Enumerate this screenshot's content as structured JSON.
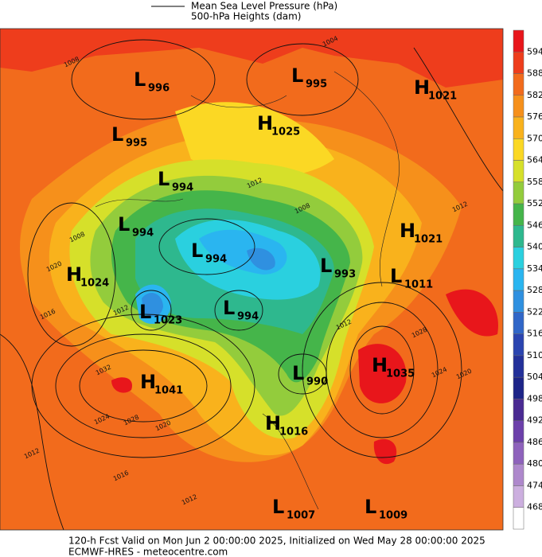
{
  "legend": {
    "items": [
      "Mean Sea Level Pressure (hPa)",
      "500-hPa Heights (dam)"
    ]
  },
  "colorbar": {
    "levels": [
      594,
      588,
      582,
      576,
      570,
      564,
      558,
      552,
      546,
      540,
      534,
      528,
      522,
      516,
      510,
      504,
      498,
      492,
      486,
      480,
      474,
      468
    ],
    "colors": [
      "#e8161b",
      "#ee3d1c",
      "#f26b1c",
      "#f6901b",
      "#f9b21c",
      "#fbd824",
      "#d6e02a",
      "#93cc3c",
      "#45b54a",
      "#2eb88e",
      "#2ad0df",
      "#2ab5f0",
      "#2f90e0",
      "#3066c8",
      "#2a44b0",
      "#23309a",
      "#1d2488",
      "#4a2a92",
      "#6c40aa",
      "#8e62bc",
      "#ae88cc",
      "#ccafdf",
      "#ffffff"
    ]
  },
  "centers": [
    {
      "type": "L",
      "value": 996
    },
    {
      "type": "L",
      "value": 995
    },
    {
      "type": "H",
      "value": 1021
    },
    {
      "type": "H",
      "value": 1025
    },
    {
      "type": "L",
      "value": 995
    },
    {
      "type": "L",
      "value": 994
    },
    {
      "type": "L",
      "value": 994
    },
    {
      "type": "H",
      "value": 1021
    },
    {
      "type": "L",
      "value": 994
    },
    {
      "type": "L",
      "value": 993
    },
    {
      "type": "H",
      "value": 1024
    },
    {
      "type": "L",
      "value": 1011
    },
    {
      "type": "L",
      "value": 1023
    },
    {
      "type": "L",
      "value": 994
    },
    {
      "type": "H",
      "value": 1035
    },
    {
      "type": "L",
      "value": 990
    },
    {
      "type": "H",
      "value": 1041
    },
    {
      "type": "H",
      "value": 1016
    },
    {
      "type": "L",
      "value": 1007
    },
    {
      "type": "L",
      "value": 1009
    }
  ],
  "isobar_labels": [
    1004,
    1008,
    1012,
    1008,
    1008,
    1020,
    1016,
    1012,
    1032,
    1024,
    1028,
    1020,
    1012,
    1016,
    1012,
    1028,
    1024,
    1020,
    1012,
    1012
  ],
  "footer": [
    "120-h Fcst Valid on Mon Jun  2 00:00:00 2025, Initialized on Wed May 28 00:00:00 2025",
    "ECMWF-HRES  - meteocentre.com"
  ]
}
